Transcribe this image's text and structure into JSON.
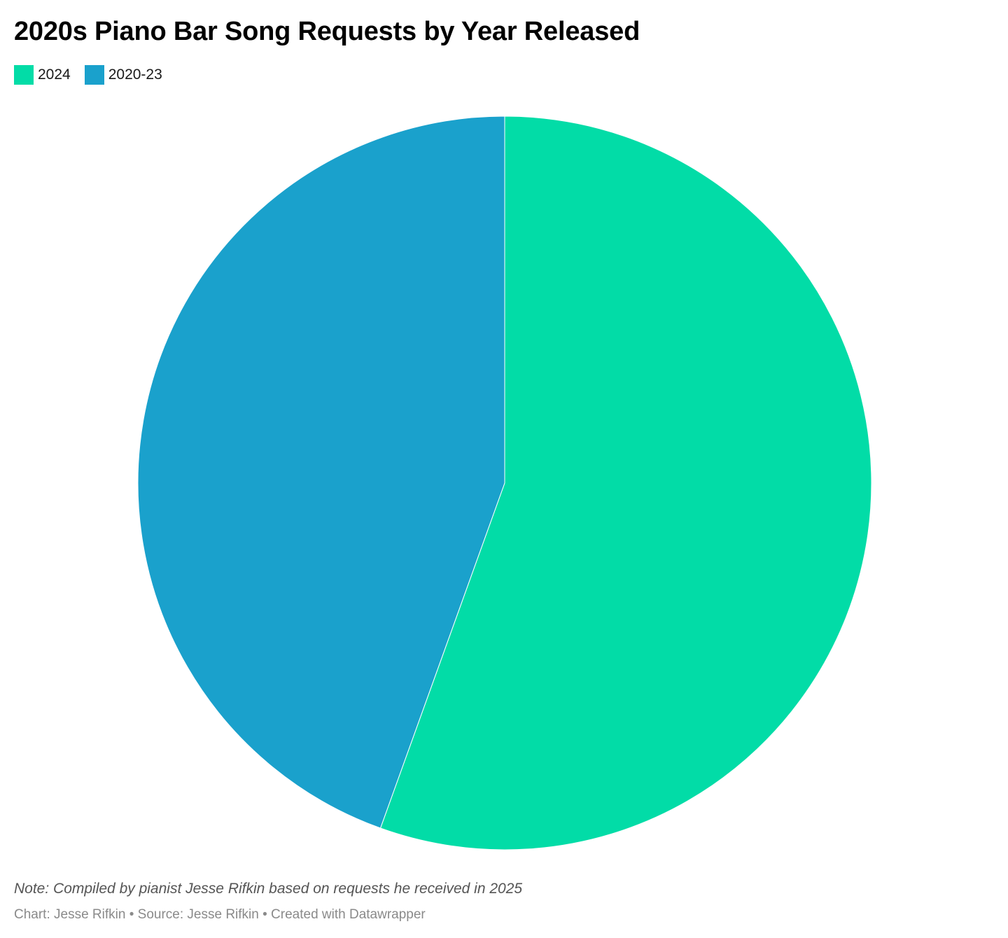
{
  "chart_data": {
    "type": "pie",
    "title": "2020s Piano Bar Song Requests by Year Released",
    "legend_placement": "top-left",
    "slices": [
      {
        "label": "2024",
        "value": 55.5,
        "color": "#02dca7"
      },
      {
        "label": "2020-23",
        "value": 44.5,
        "color": "#1aa1cc"
      }
    ],
    "start_angle_deg": 0,
    "direction": "clockwise",
    "note": "Note: Compiled by pianist Jesse Rifkin based on requests he received in 2025",
    "footer": "Chart: Jesse Rifkin • Source: Jesse Rifkin • Created with Datawrapper"
  }
}
